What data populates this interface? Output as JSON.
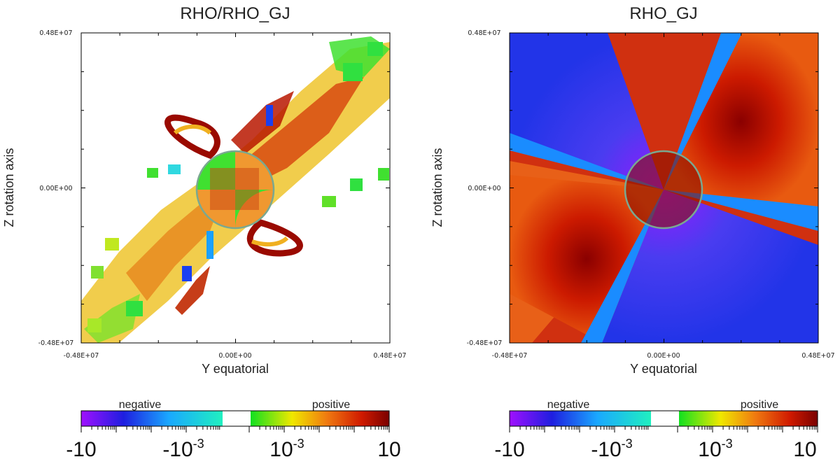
{
  "chart_data": [
    {
      "type": "heatmap",
      "title": "RHO/RHO_GJ",
      "xlabel": "Y equatorial",
      "ylabel": "Z rotation axis",
      "xlim": [
        -4800000,
        4800000
      ],
      "ylim": [
        -4800000,
        4800000
      ],
      "x_tick_labels": [
        "-0.48E+07",
        "0.00E+00",
        "0.48E+07"
      ],
      "y_tick_labels": [
        "0.48E+07",
        "0.00E+00",
        "-0.48E+07"
      ],
      "colorbar": {
        "scale": "symmetric-log",
        "range": [
          -10,
          10
        ],
        "tick_labels": [
          "-10",
          "-10^-3",
          "10^-3",
          "10"
        ],
        "left_label": "negative",
        "right_label": "positive"
      }
    },
    {
      "type": "heatmap",
      "title": "RHO_GJ",
      "xlabel": "Y equatorial",
      "ylabel": "Z rotation axis",
      "xlim": [
        -4800000,
        4800000
      ],
      "ylim": [
        -4800000,
        4800000
      ],
      "x_tick_labels": [
        "-0.48E+07",
        "0.00E+00",
        "0.48E+07"
      ],
      "y_tick_labels": [
        "0.48E+07",
        "0.00E+00",
        "-0.48E+07"
      ],
      "colorbar": {
        "scale": "symmetric-log",
        "range": [
          -10,
          10
        ],
        "tick_labels": [
          "-10",
          "-10^-3",
          "10^-3",
          "10"
        ],
        "left_label": "negative",
        "right_label": "positive"
      }
    }
  ],
  "colors": {
    "star_outline": "#7aa890",
    "frame": "#000000"
  }
}
